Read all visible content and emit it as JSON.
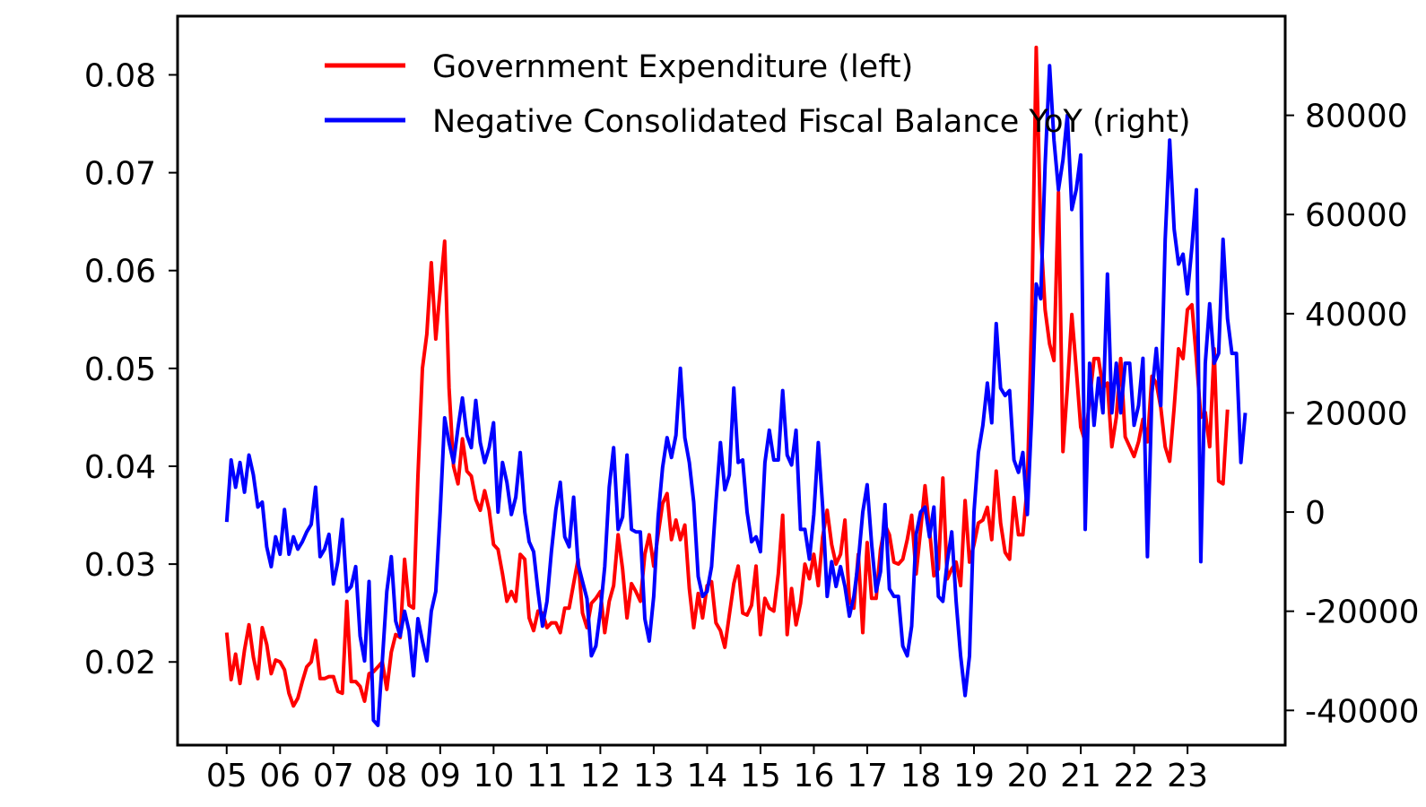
{
  "chart_data": {
    "type": "line",
    "title": "",
    "xlabel": "",
    "ylabel_left": "",
    "ylabel_right": "",
    "x_tick_labels": [
      "05",
      "06",
      "07",
      "08",
      "09",
      "10",
      "11",
      "12",
      "13",
      "14",
      "15",
      "16",
      "17",
      "18",
      "19",
      "20",
      "21",
      "22",
      "23"
    ],
    "y_left_ticks": [
      "0.02",
      "0.03",
      "0.04",
      "0.05",
      "0.06",
      "0.07",
      "0.08"
    ],
    "y_right_ticks": [
      "-40000",
      "-20000",
      "0",
      "20000",
      "40000",
      "60000",
      "80000"
    ],
    "y_left_range": [
      0.0115,
      0.086
    ],
    "y_right_range": [
      -47000,
      100000
    ],
    "x_range": [
      2004.08,
      2024.83
    ],
    "legend_placement": "top-center",
    "grid": false,
    "series": [
      {
        "name": "Government Expenditure (left)",
        "axis": "left",
        "color": "#ff0000",
        "x_start": 2005.0,
        "x_step": 0.08333,
        "values": [
          0.023,
          0.0182,
          0.0208,
          0.0178,
          0.0212,
          0.0238,
          0.0205,
          0.0183,
          0.0235,
          0.0218,
          0.0188,
          0.0202,
          0.02,
          0.0192,
          0.0168,
          0.0155,
          0.0163,
          0.018,
          0.0195,
          0.02,
          0.0222,
          0.0183,
          0.0183,
          0.0185,
          0.0185,
          0.017,
          0.0168,
          0.0262,
          0.018,
          0.018,
          0.0175,
          0.016,
          0.0188,
          0.019,
          0.0195,
          0.02,
          0.0172,
          0.021,
          0.0228,
          0.0225,
          0.0305,
          0.0258,
          0.0255,
          0.039,
          0.05,
          0.0535,
          0.0608,
          0.053,
          0.058,
          0.063,
          0.048,
          0.04,
          0.0382,
          0.0428,
          0.0395,
          0.039,
          0.0366,
          0.0355,
          0.0375,
          0.0355,
          0.032,
          0.0315,
          0.029,
          0.0262,
          0.0272,
          0.0262,
          0.031,
          0.0305,
          0.0245,
          0.0232,
          0.0252,
          0.025,
          0.0235,
          0.024,
          0.024,
          0.023,
          0.0255,
          0.0255,
          0.028,
          0.0305,
          0.025,
          0.0235,
          0.026,
          0.0265,
          0.0272,
          0.023,
          0.0262,
          0.0278,
          0.033,
          0.0295,
          0.0245,
          0.028,
          0.0272,
          0.0262,
          0.031,
          0.033,
          0.0298,
          0.033,
          0.0362,
          0.0372,
          0.0325,
          0.0345,
          0.0325,
          0.034,
          0.0275,
          0.0235,
          0.027,
          0.0245,
          0.0278,
          0.0282,
          0.024,
          0.0232,
          0.0215,
          0.0248,
          0.028,
          0.0298,
          0.025,
          0.0248,
          0.0258,
          0.0298,
          0.0228,
          0.0265,
          0.0255,
          0.0252,
          0.029,
          0.035,
          0.0228,
          0.0275,
          0.0238,
          0.026,
          0.03,
          0.0285,
          0.031,
          0.0278,
          0.0328,
          0.0355,
          0.032,
          0.03,
          0.031,
          0.0345,
          0.0262,
          0.0255,
          0.031,
          0.023,
          0.0322,
          0.0265,
          0.0265,
          0.0315,
          0.034,
          0.033,
          0.0302,
          0.03,
          0.0305,
          0.0325,
          0.035,
          0.029,
          0.0335,
          0.038,
          0.0335,
          0.0288,
          0.0295,
          0.0388,
          0.0285,
          0.0295,
          0.0302,
          0.0278,
          0.0365,
          0.0302,
          0.032,
          0.0342,
          0.0345,
          0.0358,
          0.0325,
          0.0395,
          0.0342,
          0.0312,
          0.0305,
          0.0368,
          0.033,
          0.033,
          0.038,
          0.056,
          0.0828,
          0.064,
          0.056,
          0.0525,
          0.0508,
          0.068,
          0.0415,
          0.048,
          0.0555,
          0.05,
          0.044,
          0.0425,
          0.0468,
          0.051,
          0.051,
          0.048,
          0.0485,
          0.042,
          0.045,
          0.051,
          0.043,
          0.042,
          0.041,
          0.0425,
          0.0448,
          0.0425,
          0.0492,
          0.0485,
          0.046,
          0.042,
          0.0405,
          0.046,
          0.052,
          0.051,
          0.056,
          0.0565,
          0.051,
          0.045,
          0.0455,
          0.042,
          0.052,
          0.0385,
          0.0382,
          0.0458
        ]
      },
      {
        "name": "Negative Consolidated Fiscal Balance YoY (right)",
        "axis": "right",
        "color": "#0000ff",
        "x_start": 2005.0,
        "x_step": 0.08333,
        "values": [
          -2000,
          10500,
          5000,
          10000,
          4000,
          11500,
          7500,
          1000,
          2000,
          -7000,
          -11000,
          -5000,
          -8500,
          500,
          -8500,
          -5000,
          -7500,
          -6000,
          -4000,
          -2500,
          5000,
          -9000,
          -7500,
          -4500,
          -14500,
          -10000,
          -1500,
          -16000,
          -15000,
          -11000,
          -25000,
          -30000,
          -14000,
          -42000,
          -43000,
          -30000,
          -16000,
          -9000,
          -22000,
          -25000,
          -20000,
          -24000,
          -33000,
          -21500,
          -26000,
          -30000,
          -20000,
          -16000,
          0,
          19000,
          14000,
          10000,
          17000,
          23000,
          15500,
          13000,
          22500,
          14000,
          10000,
          13000,
          18000,
          0,
          10000,
          6000,
          -500,
          3000,
          12000,
          0,
          -6000,
          -8000,
          -16000,
          -23000,
          -18000,
          -8000,
          500,
          6000,
          -5000,
          -7000,
          3000,
          -10500,
          -14000,
          -17500,
          -29000,
          -27000,
          -20000,
          -11000,
          5000,
          13000,
          -3500,
          -1000,
          11500,
          -3500,
          -4000,
          -4000,
          -21500,
          -26000,
          -17000,
          -1000,
          9000,
          15000,
          11000,
          15500,
          29000,
          15000,
          10000,
          2000,
          -13000,
          -17000,
          -16000,
          -11000,
          2000,
          14000,
          4500,
          7500,
          25000,
          10000,
          10500,
          0,
          -6000,
          -5000,
          -8000,
          10000,
          16500,
          10500,
          10500,
          24500,
          11500,
          9500,
          16500,
          -3500,
          -3500,
          -9500,
          -500,
          14000,
          1000,
          -17000,
          -10000,
          -15000,
          -11000,
          -15000,
          -21000,
          -17000,
          -10000,
          0,
          5500,
          -6500,
          -16000,
          -12000,
          1500,
          -15500,
          -17000,
          -17000,
          -27000,
          -29000,
          -23000,
          -4500,
          0,
          1000,
          -5000,
          1000,
          -17000,
          -18000,
          -10000,
          -4000,
          -18000,
          -29000,
          -37000,
          -29000,
          0,
          12000,
          17500,
          26000,
          18000,
          38000,
          25000,
          23500,
          24500,
          10500,
          8000,
          12000,
          -500,
          20000,
          46000,
          43000,
          70000,
          90000,
          75000,
          65000,
          71000,
          80000,
          61000,
          65000,
          72000,
          -3500,
          30000,
          17500,
          27000,
          20000,
          48000,
          20000,
          30000,
          20000,
          30000,
          30000,
          17500,
          21500,
          31000,
          -9000,
          24000,
          33000,
          21500,
          55000,
          75000,
          57000,
          50000,
          52000,
          44000,
          53500,
          65000,
          -10000,
          30000,
          42000,
          30000,
          32000,
          55000,
          39000,
          32000,
          32000,
          10000,
          20000
        ]
      }
    ]
  }
}
